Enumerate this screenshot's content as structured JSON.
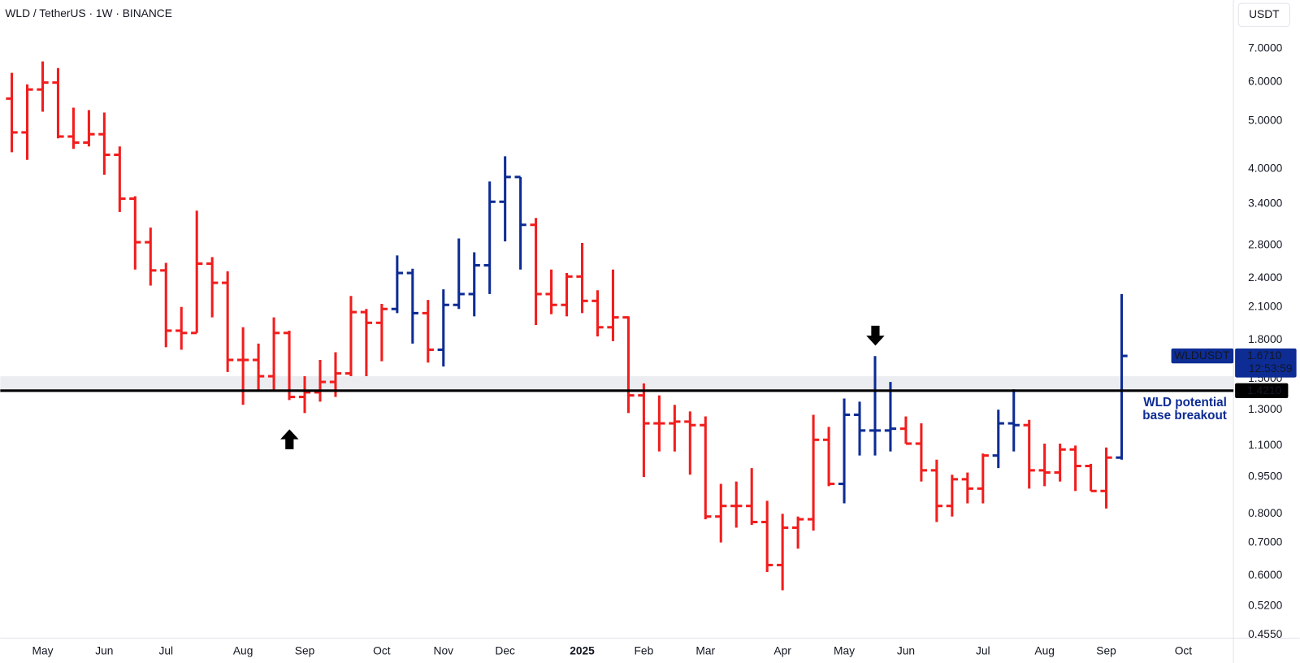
{
  "chart_data": {
    "type": "ohlc",
    "title": "WLD / TetherUS · 1W · BINANCE",
    "y_unit": "USDT",
    "log_scale": true,
    "grid": false,
    "open": [
      5.55,
      4.74,
      5.79,
      5.98,
      4.65,
      4.52,
      4.7,
      4.27,
      3.48,
      2.84,
      2.49,
      1.88,
      1.86,
      2.57,
      2.35,
      1.64,
      1.64,
      1.52,
      1.86,
      1.38,
      1.41,
      1.48,
      1.54,
      2.05,
      1.95,
      2.08,
      2.46,
      2.04,
      1.72,
      2.12,
      2.23,
      2.55,
      3.43,
      3.85,
      3.08,
      2.23,
      2.12,
      2.42,
      2.16,
      1.91,
      2.0,
      1.39,
      1.22,
      1.22,
      1.23,
      1.21,
      0.79,
      0.83,
      0.83,
      0.77,
      0.63,
      0.75,
      0.78,
      1.13,
      0.92,
      1.27,
      1.18,
      1.18,
      1.19,
      1.11,
      0.98,
      0.83,
      0.94,
      0.9,
      1.05,
      1.22,
      1.21,
      0.98,
      0.97,
      1.08,
      1.0,
      0.89,
      1.04
    ],
    "high": [
      6.26,
      5.93,
      6.6,
      6.4,
      5.32,
      5.26,
      5.2,
      4.44,
      3.52,
      3.04,
      2.58,
      2.1,
      3.29,
      2.65,
      2.48,
      1.91,
      1.77,
      2.0,
      1.88,
      1.52,
      1.64,
      1.7,
      2.21,
      2.08,
      2.13,
      2.67,
      2.51,
      2.17,
      2.28,
      2.89,
      2.71,
      3.77,
      4.24,
      3.85,
      3.18,
      2.5,
      2.46,
      2.83,
      2.27,
      2.5,
      2.01,
      1.47,
      1.39,
      1.33,
      1.29,
      1.26,
      0.92,
      0.93,
      0.99,
      0.85,
      0.8,
      0.79,
      1.27,
      1.2,
      1.37,
      1.35,
      1.67,
      1.48,
      1.26,
      1.22,
      1.03,
      0.96,
      0.97,
      1.06,
      1.3,
      1.43,
      1.24,
      1.11,
      1.11,
      1.1,
      1.01,
      1.09,
      2.23
    ],
    "low": [
      4.32,
      4.17,
      5.22,
      4.61,
      4.39,
      4.44,
      3.89,
      3.27,
      2.5,
      2.32,
      1.74,
      1.72,
      1.86,
      2.0,
      1.55,
      1.33,
      1.42,
      1.42,
      1.36,
      1.28,
      1.35,
      1.38,
      1.52,
      1.52,
      1.63,
      2.04,
      1.77,
      1.62,
      1.59,
      2.08,
      2.01,
      2.23,
      2.85,
      2.5,
      1.93,
      2.03,
      2.01,
      2.04,
      1.83,
      1.79,
      1.28,
      0.95,
      1.07,
      1.07,
      0.96,
      0.78,
      0.7,
      0.75,
      0.76,
      0.61,
      0.56,
      0.68,
      0.74,
      0.91,
      0.84,
      1.05,
      1.05,
      1.07,
      1.11,
      0.93,
      0.77,
      0.79,
      0.84,
      0.84,
      0.99,
      1.07,
      0.9,
      0.91,
      0.93,
      0.89,
      0.89,
      0.82,
      1.03
    ],
    "close": [
      4.74,
      5.79,
      5.98,
      4.65,
      4.52,
      4.7,
      4.27,
      3.48,
      2.84,
      2.49,
      1.88,
      1.86,
      2.57,
      2.35,
      1.64,
      1.64,
      1.52,
      1.86,
      1.38,
      1.41,
      1.48,
      1.54,
      2.05,
      1.95,
      2.08,
      2.46,
      2.04,
      1.72,
      2.12,
      2.23,
      2.55,
      3.43,
      3.85,
      3.08,
      2.23,
      2.12,
      2.42,
      2.16,
      1.91,
      2.0,
      1.39,
      1.22,
      1.22,
      1.23,
      1.21,
      0.79,
      0.83,
      0.83,
      0.77,
      0.63,
      0.75,
      0.78,
      1.13,
      0.92,
      1.27,
      1.18,
      1.18,
      1.19,
      1.11,
      0.98,
      0.83,
      0.94,
      0.9,
      1.05,
      1.22,
      1.21,
      0.98,
      0.97,
      1.08,
      1.0,
      0.89,
      1.04,
      1.671
    ],
    "colors": [
      "#f21d1d",
      "#f21d1d",
      "#f21d1d",
      "#f21d1d",
      "#f21d1d",
      "#f21d1d",
      "#f21d1d",
      "#f21d1d",
      "#f21d1d",
      "#f21d1d",
      "#f21d1d",
      "#f21d1d",
      "#f21d1d",
      "#f21d1d",
      "#f21d1d",
      "#f21d1d",
      "#f21d1d",
      "#f21d1d",
      "#f21d1d",
      "#f21d1d",
      "#f21d1d",
      "#f21d1d",
      "#f21d1d",
      "#f21d1d",
      "#f21d1d",
      "#0d2c94",
      "#0d2c94",
      "#f21d1d",
      "#0d2c94",
      "#0d2c94",
      "#0d2c94",
      "#0d2c94",
      "#0d2c94",
      "#0d2c94",
      "#f21d1d",
      "#f21d1d",
      "#f21d1d",
      "#f21d1d",
      "#f21d1d",
      "#f21d1d",
      "#f21d1d",
      "#f21d1d",
      "#f21d1d",
      "#f21d1d",
      "#f21d1d",
      "#f21d1d",
      "#f21d1d",
      "#f21d1d",
      "#f21d1d",
      "#f21d1d",
      "#f21d1d",
      "#f21d1d",
      "#f21d1d",
      "#f21d1d",
      "#0d2c94",
      "#0d2c94",
      "#0d2c94",
      "#0d2c94",
      "#f21d1d",
      "#f21d1d",
      "#f21d1d",
      "#f21d1d",
      "#f21d1d",
      "#f21d1d",
      "#0d2c94",
      "#0d2c94",
      "#f21d1d",
      "#f21d1d",
      "#f21d1d",
      "#f21d1d",
      "#f21d1d",
      "#f21d1d",
      "#0d2c94"
    ],
    "xlim": [
      -0.75,
      79.25
    ],
    "xticks": [
      {
        "value": 2,
        "label": "May"
      },
      {
        "value": 6,
        "label": "Jun"
      },
      {
        "value": 10,
        "label": "Jul"
      },
      {
        "value": 15,
        "label": "Aug"
      },
      {
        "value": 19,
        "label": "Sep"
      },
      {
        "value": 24,
        "label": "Oct"
      },
      {
        "value": 28,
        "label": "Nov"
      },
      {
        "value": 32,
        "label": "Dec"
      },
      {
        "value": 37,
        "label": "2025",
        "bold": true
      },
      {
        "value": 41,
        "label": "Feb"
      },
      {
        "value": 45,
        "label": "Mar"
      },
      {
        "value": 50,
        "label": "Apr"
      },
      {
        "value": 54,
        "label": "May"
      },
      {
        "value": 58,
        "label": "Jun"
      },
      {
        "value": 63,
        "label": "Jul"
      },
      {
        "value": 67,
        "label": "Aug"
      },
      {
        "value": 71,
        "label": "Sep"
      },
      {
        "value": 76,
        "label": "Oct"
      }
    ],
    "ylim": [
      0.448,
      8.79
    ],
    "yticks": [
      {
        "value": 7,
        "label": "7.0000"
      },
      {
        "value": 6,
        "label": "6.0000"
      },
      {
        "value": 5,
        "label": "5.0000"
      },
      {
        "value": 4,
        "label": "4.0000"
      },
      {
        "value": 3.4,
        "label": "3.4000"
      },
      {
        "value": 2.8,
        "label": "2.8000"
      },
      {
        "value": 2.4,
        "label": "2.4000"
      },
      {
        "value": 2.1,
        "label": "2.1000"
      },
      {
        "value": 1.8,
        "label": "1.8000"
      },
      {
        "value": 1.5,
        "label": "1.5000"
      },
      {
        "value": 1.3,
        "label": "1.3000"
      },
      {
        "value": 1.1,
        "label": "1.1000"
      },
      {
        "value": 0.95,
        "label": "0.9500"
      },
      {
        "value": 0.8,
        "label": "0.8000"
      },
      {
        "value": 0.7,
        "label": "0.7000"
      },
      {
        "value": 0.6,
        "label": "0.6000"
      },
      {
        "value": 0.52,
        "label": "0.5200"
      },
      {
        "value": 0.455,
        "label": "0.4550"
      }
    ],
    "zone": [
      1.43,
      1.52
    ],
    "hline": {
      "value": 1.421,
      "label": "1.4210",
      "color": "#000000"
    },
    "last_price": {
      "name": "WLDUSDT",
      "label": "1.6710",
      "countdown": "12:53:59",
      "color": "#0d2c94"
    },
    "annotation": [
      "WLD potential",
      "base breakout"
    ]
  }
}
